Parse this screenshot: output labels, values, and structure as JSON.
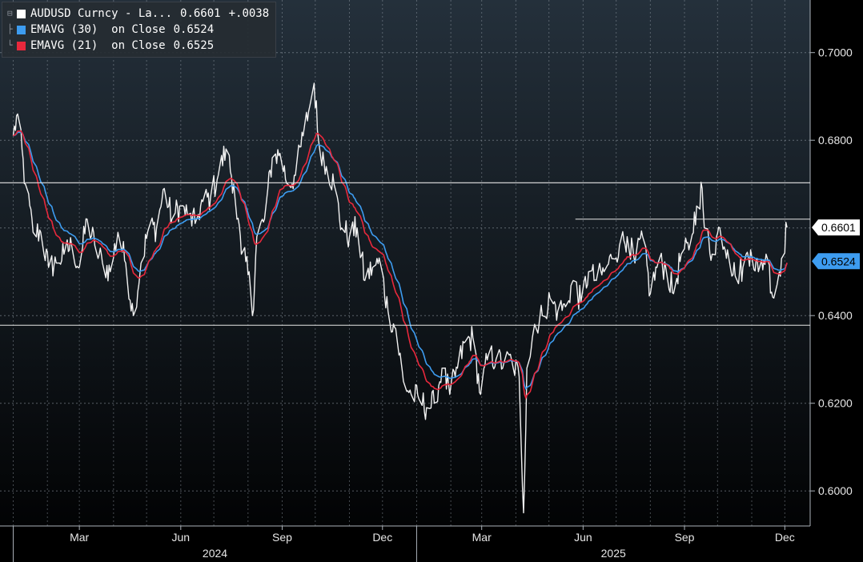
{
  "legend": {
    "items": [
      {
        "label": "AUDUSD Curncy - La...",
        "value": "0.6601",
        "change": "+.0038",
        "color": "#ffffff"
      },
      {
        "label": "EMAVG (30)  on Close",
        "value": "0.6524",
        "change": "",
        "color": "#3d9cf0"
      },
      {
        "label": "EMAVG (21)  on Close",
        "value": "0.6525",
        "change": "",
        "color": "#e8283c"
      }
    ]
  },
  "chart_data": {
    "type": "line",
    "title": "",
    "ylim": [
      0.592,
      0.712
    ],
    "y_ticks": [
      "0.6000",
      "0.6200",
      "0.6400",
      "0.6800",
      "0.7000"
    ],
    "x_months": [
      "Mar",
      "Jun",
      "Sep",
      "Dec",
      "Mar",
      "Jun",
      "Sep",
      "Dec"
    ],
    "x_years": [
      "2024",
      "2025"
    ],
    "grid": true,
    "price_badge": {
      "text": "0.6601",
      "value": 0.6601,
      "color": "#ffffff"
    },
    "ema_badge": {
      "text": "0.6524",
      "value": 0.6524,
      "color": "#3d9cf0"
    },
    "horizontal_lines": [
      {
        "value": 0.6703,
        "from": "start"
      },
      {
        "value": 0.6378,
        "from": "start"
      },
      {
        "value": 0.662,
        "from": "2025-05-25"
      }
    ],
    "price_anchors": [
      [
        "2024-01-01",
        0.681
      ],
      [
        "2024-01-05",
        0.686
      ],
      [
        "2024-01-12",
        0.67
      ],
      [
        "2024-01-19",
        0.659
      ],
      [
        "2024-01-26",
        0.659
      ],
      [
        "2024-02-02",
        0.651
      ],
      [
        "2024-02-09",
        0.652
      ],
      [
        "2024-02-16",
        0.654
      ],
      [
        "2024-02-23",
        0.656
      ],
      [
        "2024-03-01",
        0.651
      ],
      [
        "2024-03-08",
        0.662
      ],
      [
        "2024-03-15",
        0.656
      ],
      [
        "2024-03-22",
        0.652
      ],
      [
        "2024-03-29",
        0.65
      ],
      [
        "2024-04-05",
        0.659
      ],
      [
        "2024-04-12",
        0.652
      ],
      [
        "2024-04-19",
        0.64
      ],
      [
        "2024-04-26",
        0.652
      ],
      [
        "2024-05-03",
        0.66
      ],
      [
        "2024-05-10",
        0.66
      ],
      [
        "2024-05-17",
        0.669
      ],
      [
        "2024-05-24",
        0.662
      ],
      [
        "2024-05-31",
        0.665
      ],
      [
        "2024-06-07",
        0.663
      ],
      [
        "2024-06-14",
        0.661
      ],
      [
        "2024-06-21",
        0.666
      ],
      [
        "2024-06-28",
        0.667
      ],
      [
        "2024-07-05",
        0.672
      ],
      [
        "2024-07-12",
        0.678
      ],
      [
        "2024-07-19",
        0.67
      ],
      [
        "2024-07-26",
        0.654
      ],
      [
        "2024-08-02",
        0.65
      ],
      [
        "2024-08-05",
        0.64
      ],
      [
        "2024-08-09",
        0.658
      ],
      [
        "2024-08-16",
        0.662
      ],
      [
        "2024-08-23",
        0.676
      ],
      [
        "2024-08-30",
        0.677
      ],
      [
        "2024-09-06",
        0.67
      ],
      [
        "2024-09-13",
        0.672
      ],
      [
        "2024-09-20",
        0.681
      ],
      [
        "2024-09-27",
        0.689
      ],
      [
        "2024-09-30",
        0.693
      ],
      [
        "2024-10-04",
        0.68
      ],
      [
        "2024-10-11",
        0.674
      ],
      [
        "2024-10-18",
        0.67
      ],
      [
        "2024-10-25",
        0.66
      ],
      [
        "2024-11-01",
        0.658
      ],
      [
        "2024-11-08",
        0.66
      ],
      [
        "2024-11-15",
        0.648
      ],
      [
        "2024-11-22",
        0.651
      ],
      [
        "2024-11-29",
        0.652
      ],
      [
        "2024-12-06",
        0.641
      ],
      [
        "2024-12-13",
        0.637
      ],
      [
        "2024-12-20",
        0.625
      ],
      [
        "2024-12-27",
        0.622
      ],
      [
        "2025-01-03",
        0.621
      ],
      [
        "2025-01-10",
        0.619
      ],
      [
        "2025-01-17",
        0.62
      ],
      [
        "2025-01-24",
        0.628
      ],
      [
        "2025-01-31",
        0.622
      ],
      [
        "2025-02-07",
        0.628
      ],
      [
        "2025-02-14",
        0.634
      ],
      [
        "2025-02-21",
        0.635
      ],
      [
        "2025-02-28",
        0.622
      ],
      [
        "2025-03-07",
        0.631
      ],
      [
        "2025-03-14",
        0.63
      ],
      [
        "2025-03-21",
        0.629
      ],
      [
        "2025-03-28",
        0.63
      ],
      [
        "2025-04-04",
        0.626
      ],
      [
        "2025-04-08",
        0.595
      ],
      [
        "2025-04-11",
        0.628
      ],
      [
        "2025-04-18",
        0.638
      ],
      [
        "2025-04-25",
        0.64
      ],
      [
        "2025-05-02",
        0.644
      ],
      [
        "2025-05-09",
        0.641
      ],
      [
        "2025-05-16",
        0.642
      ],
      [
        "2025-05-23",
        0.648
      ],
      [
        "2025-05-30",
        0.643
      ],
      [
        "2025-06-06",
        0.65
      ],
      [
        "2025-06-13",
        0.648
      ],
      [
        "2025-06-20",
        0.65
      ],
      [
        "2025-06-27",
        0.653
      ],
      [
        "2025-07-04",
        0.656
      ],
      [
        "2025-07-11",
        0.658
      ],
      [
        "2025-07-18",
        0.652
      ],
      [
        "2025-07-25",
        0.658
      ],
      [
        "2025-08-01",
        0.645
      ],
      [
        "2025-08-08",
        0.652
      ],
      [
        "2025-08-15",
        0.651
      ],
      [
        "2025-08-22",
        0.645
      ],
      [
        "2025-08-29",
        0.654
      ],
      [
        "2025-09-05",
        0.655
      ],
      [
        "2025-09-12",
        0.665
      ],
      [
        "2025-09-17",
        0.669
      ],
      [
        "2025-09-19",
        0.66
      ],
      [
        "2025-09-26",
        0.654
      ],
      [
        "2025-10-03",
        0.66
      ],
      [
        "2025-10-10",
        0.655
      ],
      [
        "2025-10-17",
        0.649
      ],
      [
        "2025-10-24",
        0.651
      ],
      [
        "2025-10-31",
        0.655
      ],
      [
        "2025-11-07",
        0.65
      ],
      [
        "2025-11-14",
        0.654
      ],
      [
        "2025-11-21",
        0.644
      ],
      [
        "2025-11-28",
        0.653
      ],
      [
        "2025-12-03",
        0.6601
      ]
    ]
  }
}
